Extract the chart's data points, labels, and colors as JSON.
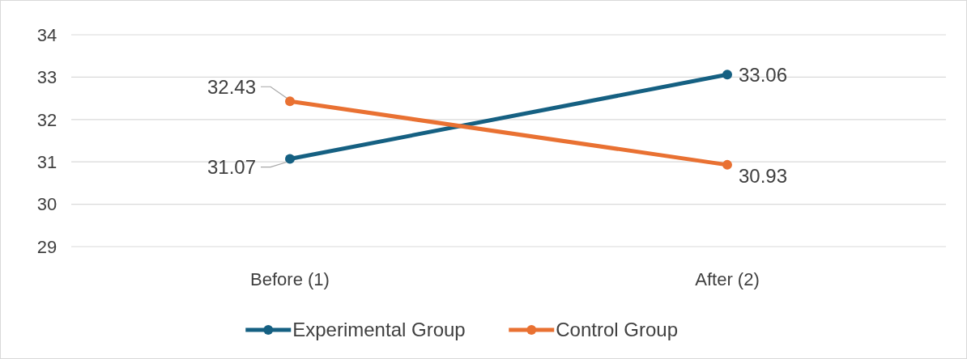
{
  "chart_data": {
    "type": "line",
    "categories": [
      "Before (1)",
      "After (2)"
    ],
    "series": [
      {
        "name": "Experimental Group",
        "color": "#156082",
        "values": [
          31.07,
          33.06
        ]
      },
      {
        "name": "Control Group",
        "color": "#e97132",
        "values": [
          32.43,
          30.93
        ]
      }
    ],
    "ylim": [
      29,
      34
    ],
    "yticks": [
      29,
      30,
      31,
      32,
      33,
      34
    ],
    "grid": "y",
    "legend": "bottom",
    "marker": "circle",
    "line_style": "solid",
    "data_labels": true
  }
}
